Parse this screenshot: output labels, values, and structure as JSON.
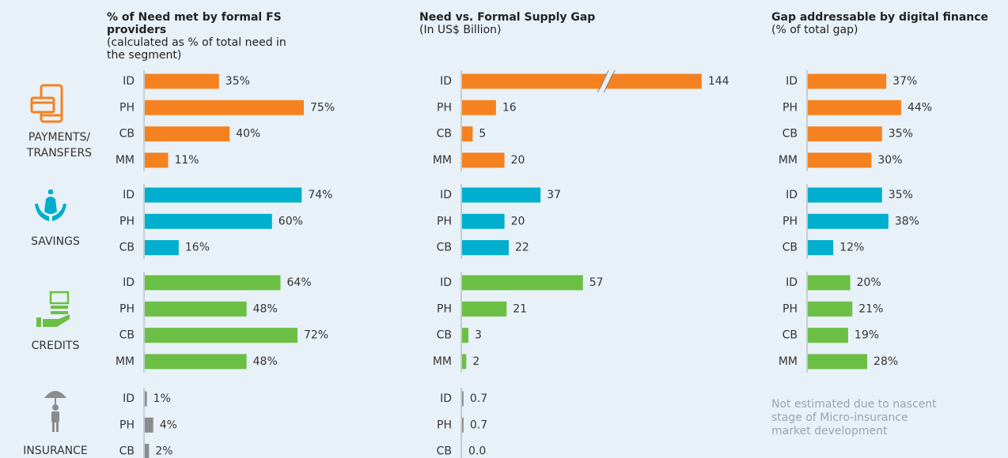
{
  "segments": [
    {
      "name": "PAYMENTS/ TRANSFERS",
      "color": "#f58220"
    },
    {
      "name": "SAVINGS",
      "color": "#00aece"
    },
    {
      "name": "CREDITS",
      "color": "#6cbf45"
    },
    {
      "name": "INSURANCE",
      "color": "#8c8c8c"
    }
  ],
  "chart_data": [
    {
      "type": "bar",
      "title": "% of Need met by formal FS providers",
      "subtitle": "(calculated as % of total need in the segment)",
      "xlim": [
        0,
        100
      ],
      "groups": [
        {
          "categories": [
            "ID",
            "PH",
            "CB",
            "MM"
          ],
          "values": [
            35,
            75,
            40,
            11
          ],
          "value_labels": [
            "35%",
            "75%",
            "40%",
            "11%"
          ]
        },
        {
          "categories": [
            "ID",
            "PH",
            "CB"
          ],
          "values": [
            74,
            60,
            16
          ],
          "value_labels": [
            "74%",
            "60%",
            "16%"
          ]
        },
        {
          "categories": [
            "ID",
            "PH",
            "CB",
            "MM"
          ],
          "values": [
            64,
            48,
            72,
            48
          ],
          "value_labels": [
            "64%",
            "48%",
            "72%",
            "48%"
          ]
        },
        {
          "categories": [
            "ID",
            "PH",
            "CB"
          ],
          "values": [
            1,
            4,
            2
          ],
          "value_labels": [
            "1%",
            "4%",
            "2%"
          ]
        }
      ]
    },
    {
      "type": "bar",
      "title": "Need vs. Formal Supply Gap",
      "subtitle": "(In US$ Billion)",
      "xlim": [
        0,
        144
      ],
      "xbreak": [
        68,
        99
      ],
      "groups": [
        {
          "categories": [
            "ID",
            "PH",
            "CB",
            "MM"
          ],
          "values": [
            144,
            16,
            5,
            20
          ]
        },
        {
          "categories": [
            "ID",
            "PH",
            "CB"
          ],
          "values": [
            37,
            20,
            22
          ]
        },
        {
          "categories": [
            "ID",
            "PH",
            "CB",
            "MM"
          ],
          "values": [
            57,
            21,
            3,
            2
          ]
        },
        {
          "categories": [
            "ID",
            "PH",
            "CB"
          ],
          "values": [
            0.7,
            0.7,
            0.0
          ],
          "value_labels": [
            "0.7",
            "0.7",
            "0.0"
          ]
        }
      ]
    },
    {
      "type": "bar",
      "title": "Gap addressable by digital finance",
      "subtitle": "(% of total gap)",
      "xlim": [
        0,
        100
      ],
      "groups": [
        {
          "categories": [
            "ID",
            "PH",
            "CB",
            "MM"
          ],
          "values": [
            37,
            44,
            35,
            30
          ],
          "value_labels": [
            "37%",
            "44%",
            "35%",
            "30%"
          ]
        },
        {
          "categories": [
            "ID",
            "PH",
            "CB"
          ],
          "values": [
            35,
            38,
            12
          ],
          "value_labels": [
            "35%",
            "38%",
            "12%"
          ]
        },
        {
          "categories": [
            "ID",
            "PH",
            "CB",
            "MM"
          ],
          "values": [
            20,
            21,
            19,
            28
          ],
          "value_labels": [
            "20%",
            "21%",
            "19%",
            "28%"
          ]
        }
      ],
      "note": "Not estimated due to nascent stage of Micro-insurance market development"
    }
  ]
}
